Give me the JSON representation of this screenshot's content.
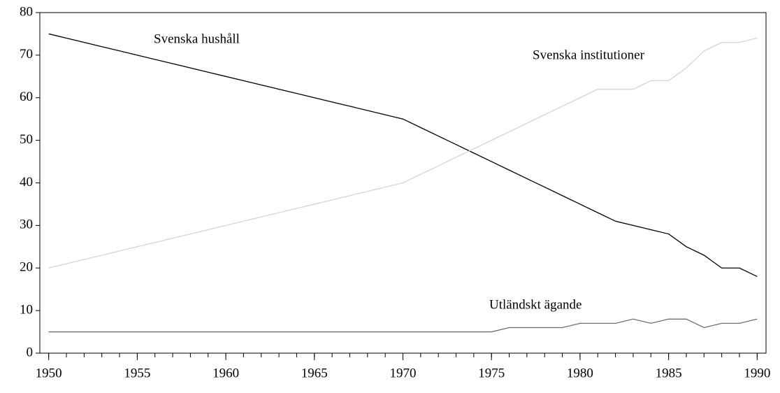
{
  "chart_data": {
    "type": "line",
    "x": [
      1950,
      1951,
      1952,
      1953,
      1954,
      1955,
      1956,
      1957,
      1958,
      1959,
      1960,
      1961,
      1962,
      1963,
      1964,
      1965,
      1966,
      1967,
      1968,
      1969,
      1970,
      1971,
      1972,
      1973,
      1974,
      1975,
      1976,
      1977,
      1978,
      1979,
      1980,
      1981,
      1982,
      1983,
      1984,
      1985,
      1986,
      1987,
      1988,
      1989,
      1990
    ],
    "series": [
      {
        "name": "Svenska hushåll",
        "color": "#000000",
        "values": [
          75,
          74,
          73,
          72,
          71,
          70,
          69,
          68,
          67,
          66,
          65,
          64,
          63,
          62,
          61,
          60,
          59,
          58,
          57,
          56,
          55,
          53,
          51,
          49,
          47,
          45,
          43,
          41,
          39,
          37,
          35,
          33,
          31,
          30,
          29,
          28,
          25,
          23,
          20,
          20,
          18
        ]
      },
      {
        "name": "Svenska institutioner",
        "color": "#d4d4d4",
        "values": [
          20,
          21,
          22,
          23,
          24,
          25,
          26,
          27,
          28,
          29,
          30,
          31,
          32,
          33,
          34,
          35,
          36,
          37,
          38,
          39,
          40,
          42,
          44,
          46,
          48,
          50,
          52,
          54,
          56,
          58,
          60,
          62,
          62,
          62,
          64,
          64,
          67,
          71,
          73,
          73,
          74
        ]
      },
      {
        "name": "Utländskt ägande",
        "color": "#6e6e6e",
        "values": [
          5,
          5,
          5,
          5,
          5,
          5,
          5,
          5,
          5,
          5,
          5,
          5,
          5,
          5,
          5,
          5,
          5,
          5,
          5,
          5,
          5,
          5,
          5,
          5,
          5,
          5,
          6,
          6,
          6,
          6,
          7,
          7,
          7,
          8,
          7,
          8,
          8,
          6,
          7,
          7,
          8
        ]
      }
    ],
    "xlim": [
      1949.5,
      1990.5
    ],
    "xticks": [
      1950,
      1955,
      1960,
      1965,
      1970,
      1975,
      1980,
      1985,
      1990
    ],
    "ylim": [
      0,
      80
    ],
    "yticks": [
      0,
      10,
      20,
      30,
      40,
      50,
      60,
      70,
      80
    ]
  }
}
